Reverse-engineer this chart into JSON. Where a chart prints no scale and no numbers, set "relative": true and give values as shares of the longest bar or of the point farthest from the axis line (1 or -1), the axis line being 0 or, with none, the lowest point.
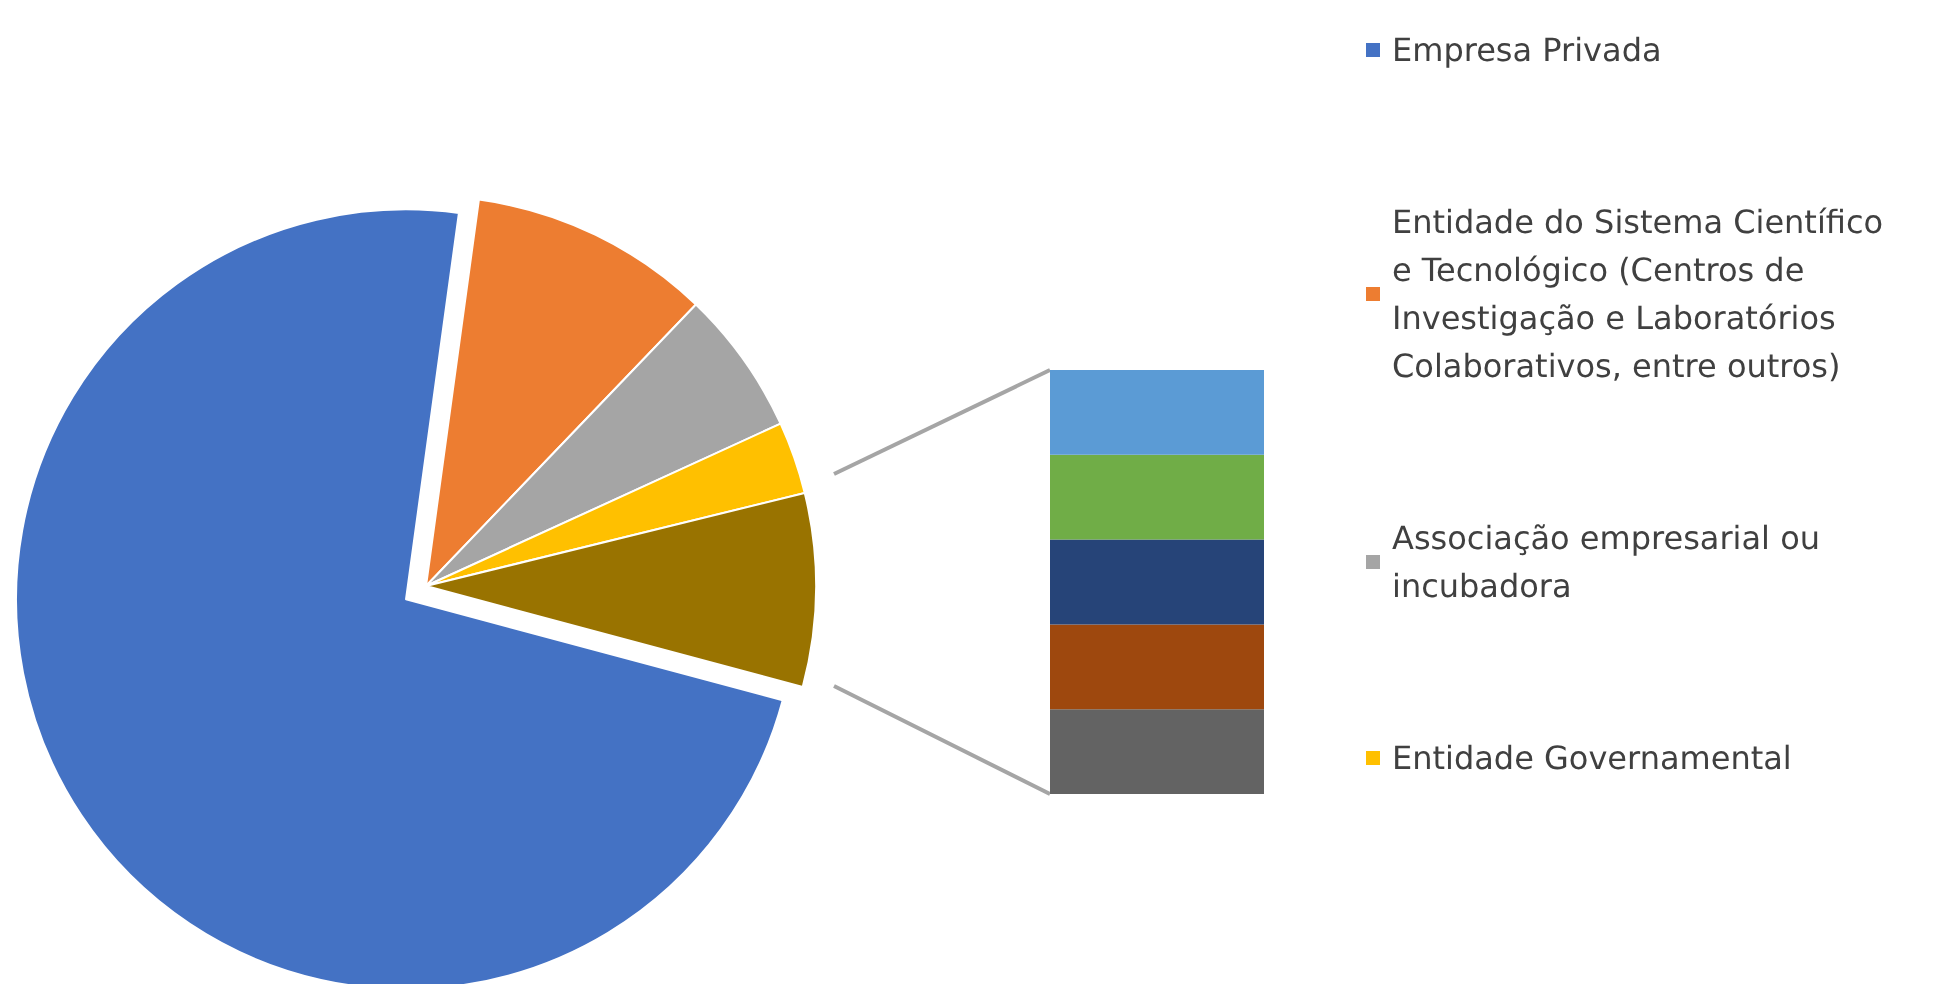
{
  "chart_data": [
    {
      "type": "pie",
      "categories": [
        "Empresa Privada",
        "Entidade do Sistema Científico e Tecnológico (Centros de Investigação e Laboratórios Colaborativos, entre outros)",
        "Associação empresarial ou incubadora",
        "Entidade Governamental",
        null
      ],
      "values": [
        73,
        10,
        6,
        3,
        8
      ],
      "colors": [
        "#4472c4",
        "#ed7d31",
        "#a5a5a5",
        "#ffc000",
        "#997300"
      ],
      "legend": "right"
    },
    {
      "type": "bar",
      "stacked": true,
      "relative": true,
      "categories": [
        null
      ],
      "series": [
        {
          "color": "#636363",
          "values": [
            0.2
          ]
        },
        {
          "color": "#9e480e",
          "values": [
            0.2
          ]
        },
        {
          "color": "#264478",
          "values": [
            0.2
          ]
        },
        {
          "color": "#70ad47",
          "values": [
            0.2
          ]
        },
        {
          "color": "#5b9bd5",
          "values": [
            0.2
          ]
        }
      ]
    }
  ]
}
